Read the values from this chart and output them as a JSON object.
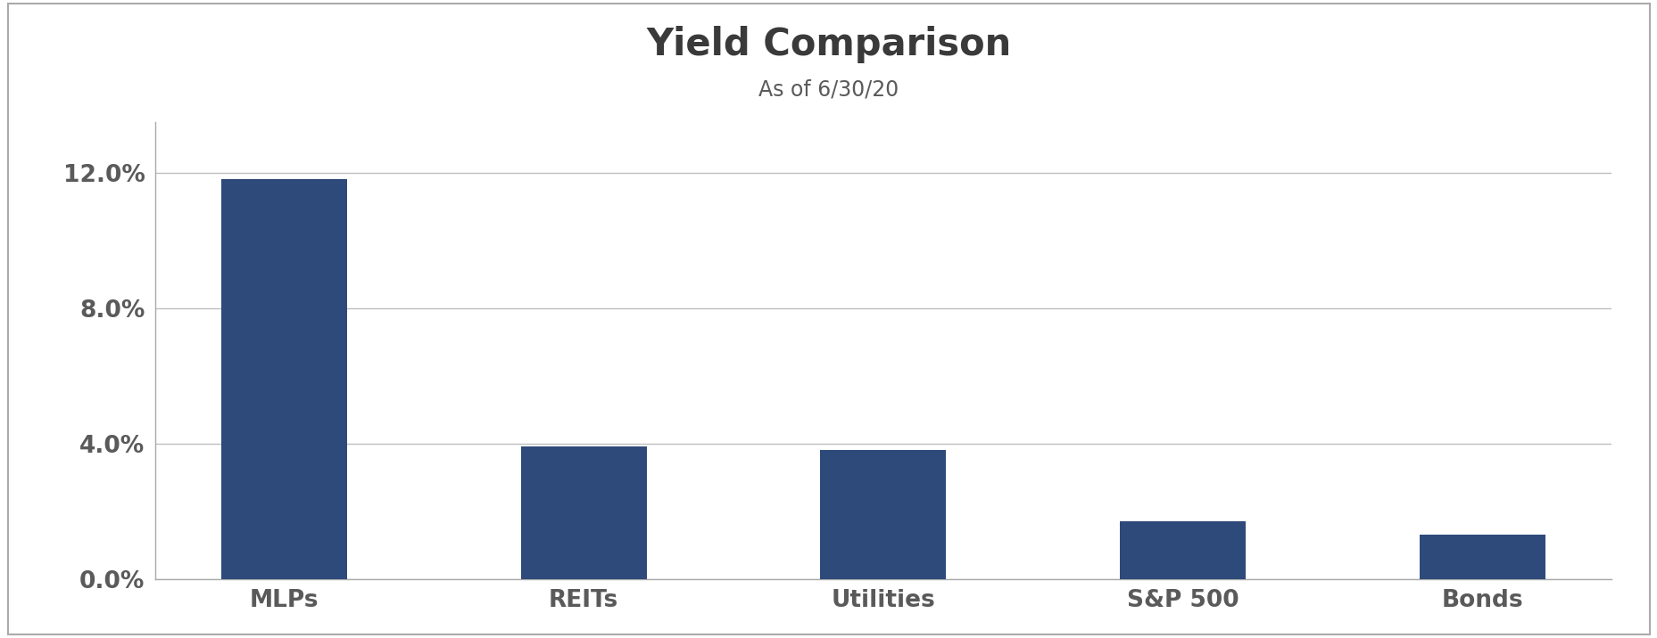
{
  "categories": [
    "MLPs",
    "REITs",
    "Utilities",
    "S&P 500",
    "Bonds"
  ],
  "values": [
    0.118,
    0.039,
    0.038,
    0.017,
    0.013
  ],
  "bar_color": "#2E4A7A",
  "title": "Yield Comparison",
  "subtitle": "As of 6/30/20",
  "title_fontsize": 30,
  "subtitle_fontsize": 17,
  "tick_label_fontsize": 19,
  "xlabel_fontsize": 19,
  "ylim": [
    0,
    0.135
  ],
  "yticks": [
    0.0,
    0.04,
    0.08,
    0.12
  ],
  "ytick_labels": [
    "0.0%",
    "4.0%",
    "8.0%",
    "12.0%"
  ],
  "background_color": "#FFFFFF",
  "grid_color": "#BEBEBE",
  "title_color": "#3A3A3A",
  "subtitle_color": "#5A5A5A",
  "tick_color": "#5A5A5A",
  "border_color": "#AAAAAA",
  "bar_width": 0.42
}
